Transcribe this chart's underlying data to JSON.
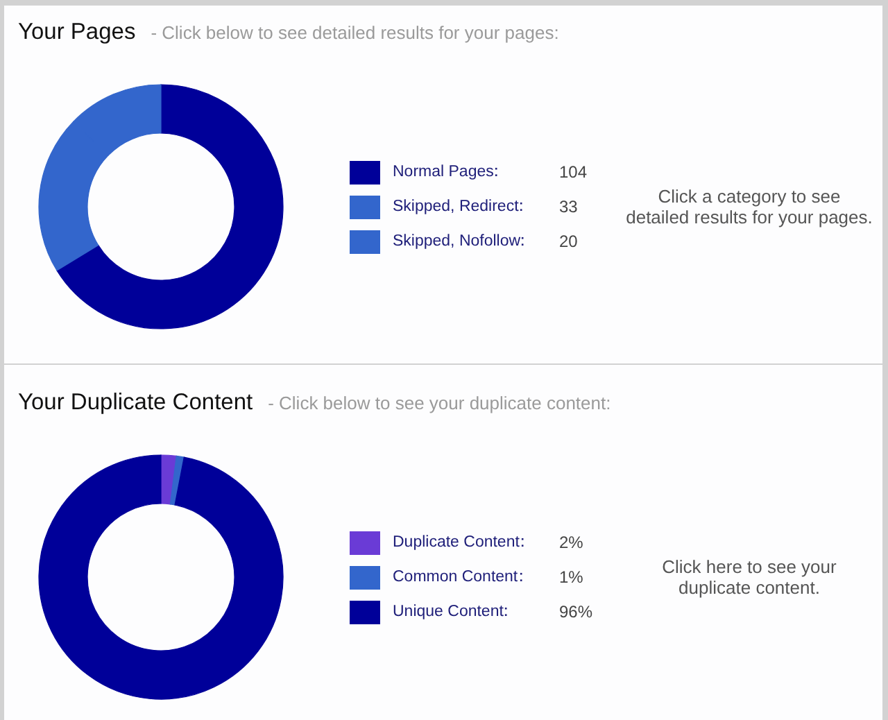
{
  "chart_data": [
    {
      "type": "donut",
      "title": "Your Pages",
      "subtitle": "- Click below to see detailed results for your pages:",
      "categories": [
        "Normal Pages",
        "Skipped, Redirect",
        "Skipped, Nofollow"
      ],
      "values": [
        104,
        33,
        20
      ],
      "colors": [
        "#000099",
        "#3366cc",
        "#3366cc"
      ],
      "data_labels": true,
      "legend": "right",
      "annotations": [
        "Click a category to see detailed results for your pages."
      ]
    },
    {
      "type": "donut",
      "title": "Your Duplicate Content",
      "subtitle": "- Click below to see your duplicate content:",
      "categories": [
        "Duplicate Content",
        "Common Content",
        "Unique Content"
      ],
      "values": [
        2,
        1,
        96
      ],
      "colors": [
        "#6a3bd6",
        "#3366cc",
        "#000099"
      ],
      "value_labels": [
        "2%",
        "1%",
        "96%"
      ],
      "legend": "right",
      "annotations": [
        "Click here to see your duplicate content."
      ]
    }
  ]
}
